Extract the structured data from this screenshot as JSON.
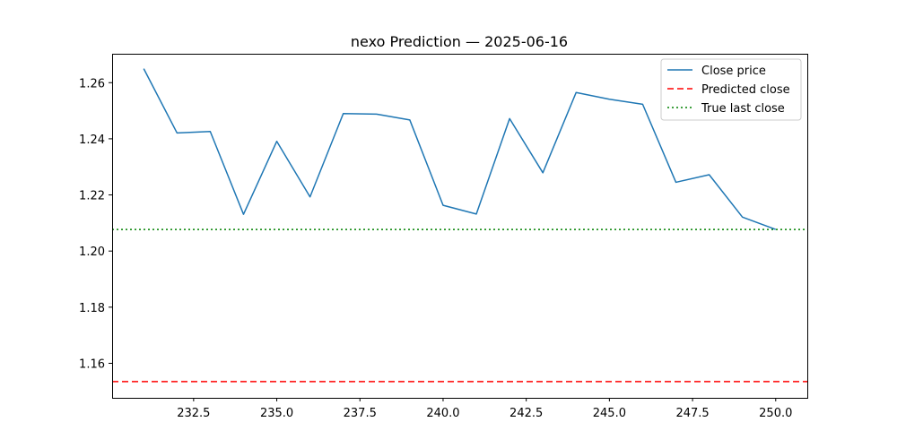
{
  "chart_data": {
    "type": "line",
    "title": "nexo Prediction — 2025-06-16",
    "xlabel": "",
    "ylabel": "",
    "xlim": [
      230.05,
      250.95
    ],
    "ylim": [
      1.1477,
      1.2703
    ],
    "x_ticks": [
      232.5,
      235.0,
      237.5,
      240.0,
      242.5,
      245.0,
      247.5,
      250.0
    ],
    "x_tick_labels": [
      "232.5",
      "235.0",
      "237.5",
      "240.0",
      "242.5",
      "245.0",
      "247.5",
      "250.0"
    ],
    "y_ticks": [
      1.16,
      1.18,
      1.2,
      1.22,
      1.24,
      1.26
    ],
    "y_tick_labels": [
      "1.16",
      "1.18",
      "1.20",
      "1.22",
      "1.24",
      "1.26"
    ],
    "grid": false,
    "legend_position": "top-right",
    "series": [
      {
        "name": "Close price",
        "color": "#1f77b4",
        "style": "solid",
        "x": [
          231,
          232,
          233,
          234,
          235,
          236,
          237,
          238,
          239,
          240,
          241,
          242,
          243,
          244,
          245,
          246,
          247,
          248,
          249,
          250
        ],
        "y": [
          1.265,
          1.2421,
          1.2426,
          1.2131,
          1.2391,
          1.2193,
          1.249,
          1.2488,
          1.2467,
          1.2163,
          1.2132,
          1.2472,
          1.2279,
          1.2565,
          1.2541,
          1.2523,
          1.2245,
          1.2272,
          1.2121,
          1.2077
        ]
      }
    ],
    "reference_lines": [
      {
        "name": "Predicted close",
        "y": 1.1535,
        "color": "#ff0000",
        "style": "dashed"
      },
      {
        "name": "True last close",
        "y": 1.2077,
        "color": "#008000",
        "style": "dotted"
      }
    ]
  }
}
